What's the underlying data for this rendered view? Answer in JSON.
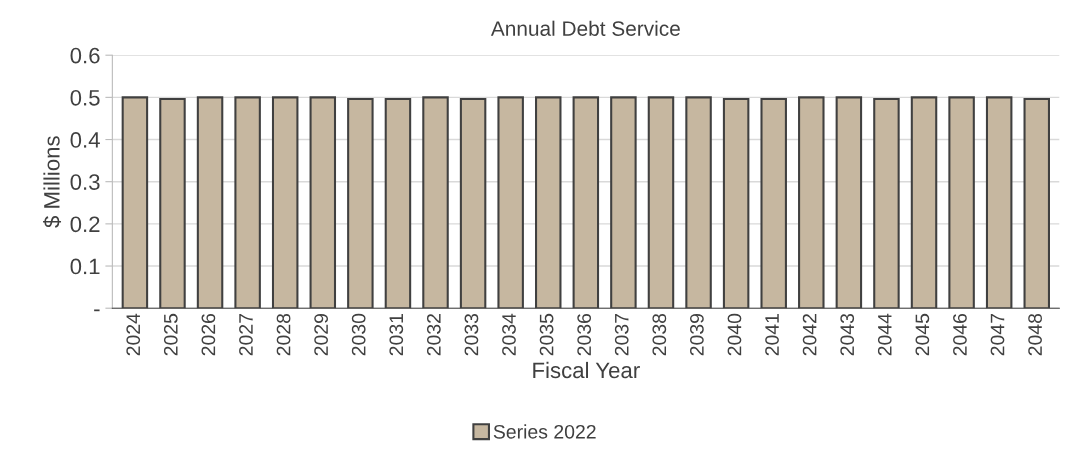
{
  "chart_data": {
    "type": "bar",
    "title": "Annual Debt Service",
    "xlabel": "Fiscal Year",
    "ylabel": "$ Millions",
    "categories": [
      "2024",
      "2025",
      "2026",
      "2027",
      "2028",
      "2029",
      "2030",
      "2031",
      "2032",
      "2033",
      "2034",
      "2035",
      "2036",
      "2037",
      "2038",
      "2039",
      "2040",
      "2041",
      "2042",
      "2043",
      "2044",
      "2045",
      "2046",
      "2047",
      "2048"
    ],
    "series": [
      {
        "name": "Series 2022",
        "color": "#c6b7a0",
        "values": [
          0.5,
          0.496,
          0.5,
          0.5,
          0.5,
          0.5,
          0.496,
          0.496,
          0.5,
          0.496,
          0.5,
          0.5,
          0.5,
          0.5,
          0.5,
          0.5,
          0.496,
          0.496,
          0.5,
          0.5,
          0.496,
          0.5,
          0.5,
          0.5,
          0.496
        ]
      }
    ],
    "ylim": [
      0,
      0.6
    ],
    "yticks": [
      {
        "value": 0,
        "label": "-"
      },
      0.1,
      0.2,
      0.3,
      0.4,
      0.5,
      0.6
    ],
    "grid": "y",
    "legend": "bottom"
  }
}
